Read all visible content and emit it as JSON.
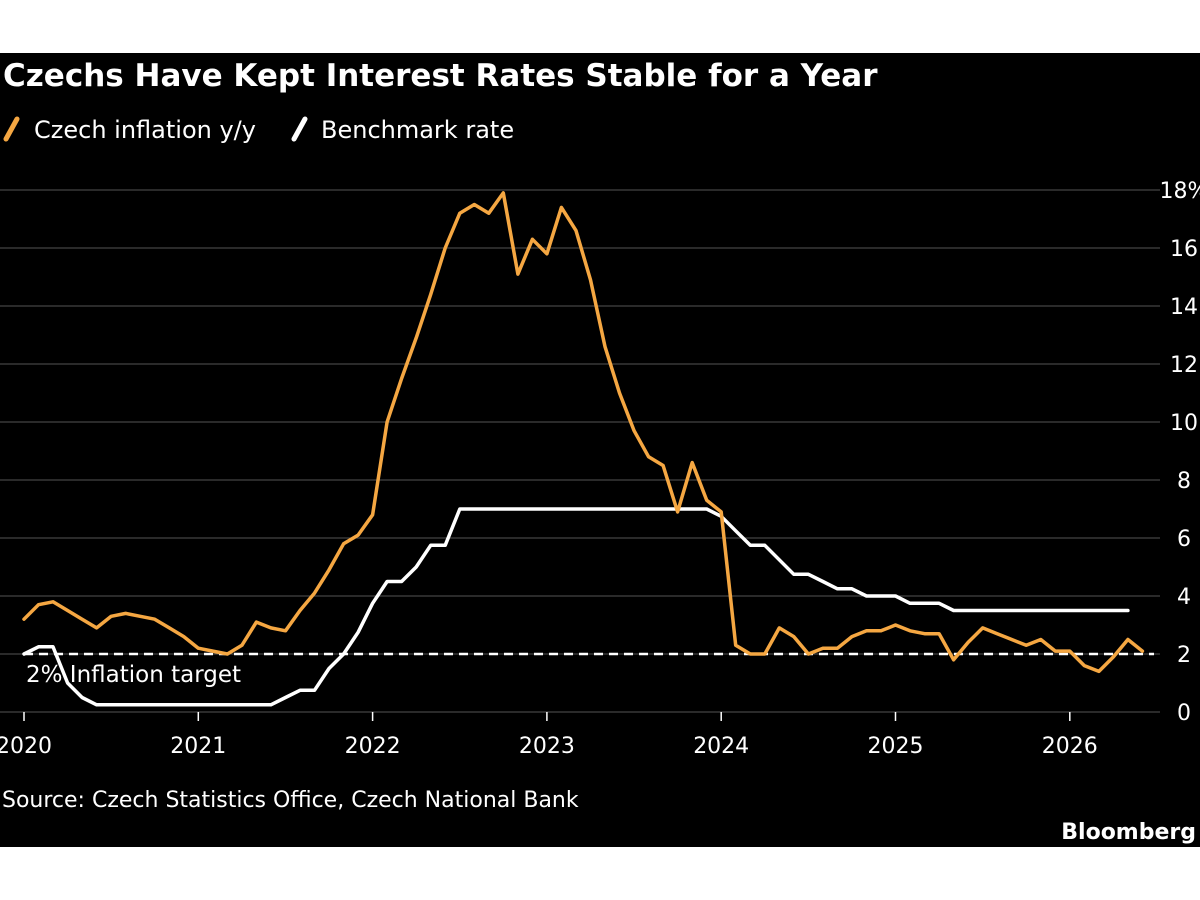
{
  "chart_data": {
    "type": "line",
    "title": "Czechs Have Kept Interest Rates Stable for a Year",
    "y_unit": "%",
    "ylim": [
      0,
      18
    ],
    "y_ticks": [
      0,
      2,
      4,
      6,
      8,
      10,
      12,
      14,
      16,
      18
    ],
    "x_ticks": [
      "2020",
      "2021",
      "2022",
      "2023",
      "2024",
      "2025",
      "2026"
    ],
    "grid": "horizontal",
    "legend_placement": "top-left",
    "x_range": [
      "2020-01",
      "2026-09"
    ],
    "series": [
      {
        "name": "Czech inflation y/y",
        "color": "#f5a742",
        "points": [
          [
            "2020-01",
            3.2
          ],
          [
            "2020-02",
            3.7
          ],
          [
            "2020-03",
            3.8
          ],
          [
            "2020-04",
            3.5
          ],
          [
            "2020-05",
            3.2
          ],
          [
            "2020-06",
            2.9
          ],
          [
            "2020-07",
            3.3
          ],
          [
            "2020-08",
            3.4
          ],
          [
            "2020-09",
            3.3
          ],
          [
            "2020-10",
            3.2
          ],
          [
            "2020-11",
            2.9
          ],
          [
            "2020-12",
            2.6
          ],
          [
            "2021-01",
            2.2
          ],
          [
            "2021-02",
            2.1
          ],
          [
            "2021-03",
            2.0
          ],
          [
            "2021-04",
            2.3
          ],
          [
            "2021-05",
            3.1
          ],
          [
            "2021-06",
            2.9
          ],
          [
            "2021-07",
            2.8
          ],
          [
            "2021-08",
            3.5
          ],
          [
            "2021-09",
            4.1
          ],
          [
            "2021-10",
            4.9
          ],
          [
            "2021-11",
            5.8
          ],
          [
            "2021-12",
            6.1
          ],
          [
            "2022-01",
            6.8
          ],
          [
            "2022-02",
            10.0
          ],
          [
            "2022-03",
            11.5
          ],
          [
            "2022-04",
            12.9
          ],
          [
            "2022-05",
            14.4
          ],
          [
            "2022-06",
            16.0
          ],
          [
            "2022-07",
            17.2
          ],
          [
            "2022-08",
            17.5
          ],
          [
            "2022-09",
            17.2
          ],
          [
            "2022-10",
            17.9
          ],
          [
            "2022-11",
            15.1
          ],
          [
            "2022-12",
            16.3
          ],
          [
            "2023-01",
            15.8
          ],
          [
            "2023-02",
            17.4
          ],
          [
            "2023-03",
            16.6
          ],
          [
            "2023-04",
            14.9
          ],
          [
            "2023-05",
            12.6
          ],
          [
            "2023-06",
            11.0
          ],
          [
            "2023-07",
            9.7
          ],
          [
            "2023-08",
            8.8
          ],
          [
            "2023-09",
            8.5
          ],
          [
            "2023-10",
            6.9
          ],
          [
            "2023-11",
            8.6
          ],
          [
            "2023-12",
            7.3
          ],
          [
            "2024-01",
            6.9
          ],
          [
            "2024-02",
            2.3
          ],
          [
            "2024-03",
            2.0
          ],
          [
            "2024-04",
            2.0
          ],
          [
            "2024-05",
            2.9
          ],
          [
            "2024-06",
            2.6
          ],
          [
            "2024-07",
            2.0
          ],
          [
            "2024-08",
            2.2
          ],
          [
            "2024-09",
            2.2
          ],
          [
            "2024-10",
            2.6
          ],
          [
            "2024-11",
            2.8
          ],
          [
            "2024-12",
            2.8
          ],
          [
            "2025-01",
            3.0
          ],
          [
            "2025-02",
            2.8
          ],
          [
            "2025-03",
            2.7
          ],
          [
            "2025-04",
            2.7
          ],
          [
            "2025-05",
            1.8
          ],
          [
            "2025-06",
            2.4
          ],
          [
            "2025-07",
            2.9
          ],
          [
            "2025-08",
            2.7
          ],
          [
            "2025-09",
            2.5
          ],
          [
            "2025-10",
            2.3
          ],
          [
            "2025-11",
            2.5
          ],
          [
            "2025-12",
            2.1
          ],
          [
            "2026-01",
            2.1
          ],
          [
            "2026-02",
            1.6
          ],
          [
            "2026-03",
            1.4
          ],
          [
            "2026-04",
            1.9
          ],
          [
            "2026-05",
            2.5
          ],
          [
            "2026-06",
            2.1
          ]
        ]
      },
      {
        "name": "Benchmark rate",
        "color": "#ffffff",
        "points": [
          [
            "2020-01",
            2.0
          ],
          [
            "2020-02",
            2.25
          ],
          [
            "2020-03",
            2.25
          ],
          [
            "2020-04",
            1.0
          ],
          [
            "2020-05",
            0.5
          ],
          [
            "2020-06",
            0.25
          ],
          [
            "2020-07",
            0.25
          ],
          [
            "2021-06",
            0.25
          ],
          [
            "2021-07",
            0.5
          ],
          [
            "2021-08",
            0.75
          ],
          [
            "2021-09",
            0.75
          ],
          [
            "2021-10",
            1.5
          ],
          [
            "2021-11",
            2.0
          ],
          [
            "2021-12",
            2.75
          ],
          [
            "2022-01",
            3.75
          ],
          [
            "2022-02",
            4.5
          ],
          [
            "2022-03",
            4.5
          ],
          [
            "2022-04",
            5.0
          ],
          [
            "2022-05",
            5.75
          ],
          [
            "2022-06",
            5.75
          ],
          [
            "2022-07",
            7.0
          ],
          [
            "2023-12",
            7.0
          ],
          [
            "2024-01",
            6.75
          ],
          [
            "2024-02",
            6.25
          ],
          [
            "2024-03",
            5.75
          ],
          [
            "2024-04",
            5.75
          ],
          [
            "2024-05",
            5.25
          ],
          [
            "2024-06",
            4.75
          ],
          [
            "2024-07",
            4.75
          ],
          [
            "2024-08",
            4.5
          ],
          [
            "2024-09",
            4.25
          ],
          [
            "2024-10",
            4.25
          ],
          [
            "2024-11",
            4.0
          ],
          [
            "2024-12",
            4.0
          ],
          [
            "2025-01",
            4.0
          ],
          [
            "2025-02",
            3.75
          ],
          [
            "2025-03",
            3.75
          ],
          [
            "2025-04",
            3.75
          ],
          [
            "2025-05",
            3.5
          ],
          [
            "2025-06",
            3.5
          ],
          [
            "2026-05",
            3.5
          ]
        ]
      }
    ],
    "reference_line": {
      "value": 2,
      "label": "2% Inflation target",
      "style": "dashed",
      "color": "#ffffff"
    }
  },
  "source": "Source: Czech Statistics Office, Czech National Bank",
  "brand": "Bloomberg",
  "colors": {
    "background": "#000000",
    "grid": "#555555",
    "inflation": "#f5a742",
    "benchmark": "#ffffff"
  }
}
